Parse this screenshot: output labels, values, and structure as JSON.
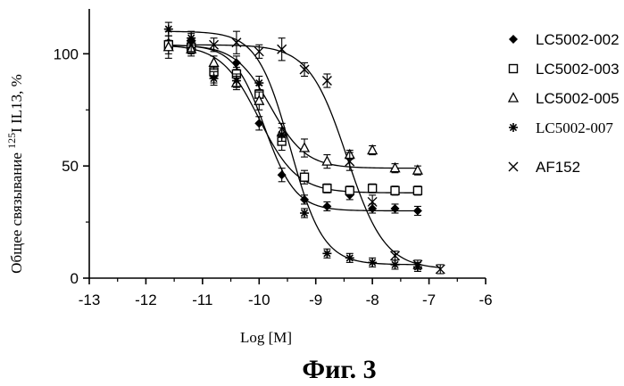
{
  "chart_data": {
    "type": "scatter",
    "xlabel": "Log [M]",
    "ylabel_pre": "Общее связывание ",
    "ylabel_sup": "125",
    "ylabel_post": "I IL13, %",
    "caption": "Фиг. 3",
    "xlim": [
      -13,
      -6
    ],
    "ylim": [
      0,
      120
    ],
    "x_ticks": [
      "-13",
      "-12",
      "-11",
      "-10",
      "-9",
      "-8",
      "-7",
      "-6"
    ],
    "y_ticks": [
      "0",
      "50",
      "100"
    ],
    "legend_position": "right",
    "series": [
      {
        "name": "LC5002-002",
        "marker": "filled-diamond",
        "curve": {
          "top": 104,
          "bottom": 30,
          "log_ec50": -9.9,
          "hill": 1.6
        },
        "x": [
          -11.6,
          -11.2,
          -10.8,
          -10.4,
          -10.0,
          -9.6,
          -9.2,
          -8.8,
          -8.4,
          -8.0,
          -7.6,
          -7.2
        ],
        "y": [
          105,
          106,
          90,
          96,
          69,
          46,
          35,
          32,
          37,
          31,
          31,
          30
        ],
        "err": [
          3,
          3,
          3,
          3,
          3,
          3,
          2,
          2,
          2,
          2,
          2,
          2
        ]
      },
      {
        "name": "LC5002-003",
        "marker": "open-square",
        "curve": {
          "top": 104,
          "bottom": 38,
          "log_ec50": -10.0,
          "hill": 1.3
        },
        "x": [
          -11.6,
          -11.2,
          -10.8,
          -10.4,
          -10.0,
          -9.6,
          -9.2,
          -8.8,
          -8.4,
          -8.0,
          -7.6,
          -7.2
        ],
        "y": [
          104,
          103,
          92,
          91,
          82,
          61,
          45,
          40,
          39,
          40,
          39,
          39
        ],
        "err": [
          6,
          3,
          3,
          3,
          4,
          4,
          3,
          2,
          2,
          2,
          2,
          2
        ]
      },
      {
        "name": "LC5002-005",
        "marker": "open-triangle",
        "curve": {
          "top": 104,
          "bottom": 49,
          "log_ec50": -9.8,
          "hill": 1.4
        },
        "x": [
          -11.6,
          -11.2,
          -10.8,
          -10.4,
          -10.0,
          -9.6,
          -9.2,
          -8.8,
          -8.4,
          -8.0,
          -7.6,
          -7.2
        ],
        "y": [
          103,
          102,
          96,
          87,
          79,
          65,
          58,
          52,
          55,
          57,
          49,
          48
        ],
        "err": [
          3,
          3,
          3,
          3,
          4,
          4,
          4,
          3,
          2,
          2,
          2,
          2
        ]
      },
      {
        "name": "LC5002-007",
        "marker": "asterisk",
        "curve": {
          "top": 110,
          "bottom": 6,
          "log_ec50": -9.45,
          "hill": 1.5
        },
        "x": [
          -11.6,
          -11.2,
          -10.8,
          -10.4,
          -10.0,
          -9.6,
          -9.2,
          -8.8,
          -8.4,
          -8.0,
          -7.6,
          -7.2
        ],
        "y": [
          111,
          107,
          89,
          88,
          87,
          64,
          29,
          11,
          9,
          7,
          6,
          5
        ],
        "err": [
          3,
          3,
          3,
          3,
          3,
          3,
          2,
          2,
          2,
          2,
          2,
          2
        ]
      },
      {
        "name": "AF152",
        "marker": "x-cross",
        "curve": {
          "top": 104,
          "bottom": 4,
          "log_ec50": -8.45,
          "hill": 1.3
        },
        "x": [
          -11.2,
          -10.8,
          -10.4,
          -10.0,
          -9.6,
          -9.2,
          -8.8,
          -8.4,
          -8.0,
          -7.6,
          -7.2,
          -6.8
        ],
        "y": [
          104,
          104,
          105,
          101,
          102,
          93,
          88,
          52,
          34,
          10,
          6,
          4
        ],
        "err": [
          3,
          3,
          5,
          3,
          5,
          3,
          3,
          4,
          3,
          2,
          2,
          2
        ]
      }
    ]
  }
}
